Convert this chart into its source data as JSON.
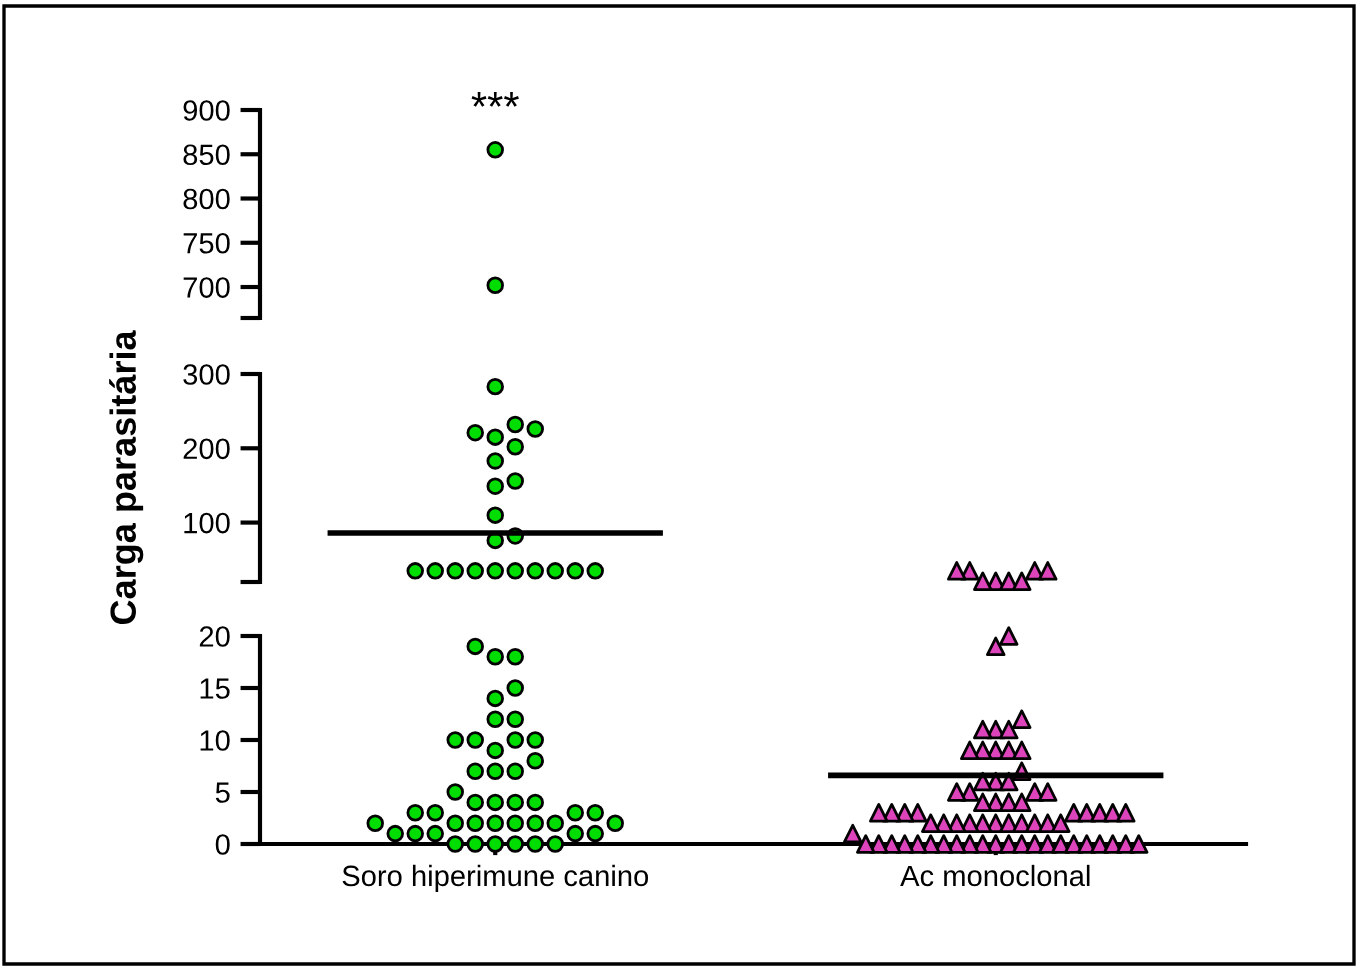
{
  "chart_data": [
    {
      "type": "scatter",
      "categories": [
        "Soro hiperimune canino",
        "Ac monoclonal"
      ],
      "tick_labels": "y",
      "ylim": [
        665,
        900
      ],
      "yticks": [
        {
          "value": 665,
          "label": null
        },
        700,
        750,
        800,
        850,
        900
      ],
      "grid": false,
      "annotations": [
        "***"
      ],
      "series": [
        {
          "color": "#00dd00",
          "marker": "circle",
          "x": [
            "Soro hiperimune canino",
            "Soro hiperimune canino"
          ],
          "values": [
            855,
            702
          ]
        }
      ]
    },
    {
      "type": "scatter",
      "categories": [
        "Soro hiperimune canino",
        "Ac monoclonal"
      ],
      "tick_labels": "y",
      "ylabel": "Carga parasitária",
      "ylim": [
        20,
        300
      ],
      "yticks": [
        {
          "value": 20,
          "label": null
        },
        100,
        200,
        300
      ],
      "grid": false,
      "ref_lines": [
        {
          "axis": "y",
          "value": 86,
          "color": "#000000"
        }
      ],
      "series": [
        {
          "color": "#00dd00",
          "marker": "circle",
          "x": [
            "Soro hiperimune canino",
            "Soro hiperimune canino",
            "Soro hiperimune canino",
            "Soro hiperimune canino",
            "Soro hiperimune canino",
            "Soro hiperimune canino",
            "Soro hiperimune canino",
            "Soro hiperimune canino",
            "Soro hiperimune canino",
            "Soro hiperimune canino",
            "Soro hiperimune canino",
            "Soro hiperimune canino",
            "Soro hiperimune canino",
            "Soro hiperimune canino",
            "Soro hiperimune canino",
            "Soro hiperimune canino",
            "Soro hiperimune canino",
            "Soro hiperimune canino",
            "Soro hiperimune canino",
            "Soro hiperimune canino",
            "Soro hiperimune canino",
            "Soro hiperimune canino"
          ],
          "values": [
            283,
            232,
            221,
            215,
            226,
            202,
            183,
            156,
            149,
            110,
            82,
            76,
            35,
            35,
            35,
            35,
            35,
            35,
            35,
            35,
            35,
            35
          ]
        },
        {
          "color": "#dd44bb",
          "marker": "triangle",
          "x": [
            "Ac monoclonal",
            "Ac monoclonal",
            "Ac monoclonal",
            "Ac monoclonal",
            "Ac monoclonal",
            "Ac monoclonal",
            "Ac monoclonal",
            "Ac monoclonal"
          ],
          "values": [
            35,
            35,
            35,
            35,
            21,
            21,
            21,
            21
          ]
        }
      ]
    },
    {
      "type": "scatter",
      "categories": [
        "Soro hiperimune canino",
        "Ac monoclonal"
      ],
      "ylim": [
        0,
        20
      ],
      "yticks": [
        0,
        5,
        10,
        15,
        20
      ],
      "grid": false,
      "ref_lines": [
        {
          "axis": "y",
          "value": 6.6,
          "color": "#000000"
        }
      ],
      "series": [
        {
          "color": "#00dd00",
          "marker": "circle",
          "x": [
            "Soro hiperimune canino",
            "Soro hiperimune canino",
            "Soro hiperimune canino",
            "Soro hiperimune canino",
            "Soro hiperimune canino",
            "Soro hiperimune canino",
            "Soro hiperimune canino",
            "Soro hiperimune canino",
            "Soro hiperimune canino",
            "Soro hiperimune canino",
            "Soro hiperimune canino",
            "Soro hiperimune canino",
            "Soro hiperimune canino",
            "Soro hiperimune canino",
            "Soro hiperimune canino",
            "Soro hiperimune canino",
            "Soro hiperimune canino",
            "Soro hiperimune canino",
            "Soro hiperimune canino",
            "Soro hiperimune canino",
            "Soro hiperimune canino",
            "Soro hiperimune canino",
            "Soro hiperimune canino",
            "Soro hiperimune canino",
            "Soro hiperimune canino",
            "Soro hiperimune canino",
            "Soro hiperimune canino",
            "Soro hiperimune canino",
            "Soro hiperimune canino",
            "Soro hiperimune canino",
            "Soro hiperimune canino",
            "Soro hiperimune canino",
            "Soro hiperimune canino",
            "Soro hiperimune canino",
            "Soro hiperimune canino",
            "Soro hiperimune canino",
            "Soro hiperimune canino",
            "Soro hiperimune canino",
            "Soro hiperimune canino",
            "Soro hiperimune canino",
            "Soro hiperimune canino",
            "Soro hiperimune canino",
            "Soro hiperimune canino",
            "Soro hiperimune canino"
          ],
          "values": [
            19,
            18,
            18,
            15,
            14,
            12,
            12,
            10,
            10,
            10,
            10,
            9,
            8,
            7,
            7,
            7,
            5,
            4,
            4,
            4,
            4,
            3,
            3,
            3,
            3,
            2,
            2,
            2,
            2,
            2,
            2,
            2,
            2,
            1,
            1,
            1,
            1,
            1,
            0,
            0,
            0,
            0,
            0,
            0
          ]
        },
        {
          "color": "#dd44bb",
          "marker": "triangle",
          "x": [
            "Ac monoclonal",
            "Ac monoclonal",
            "Ac monoclonal",
            "Ac monoclonal",
            "Ac monoclonal",
            "Ac monoclonal",
            "Ac monoclonal",
            "Ac monoclonal",
            "Ac monoclonal",
            "Ac monoclonal",
            "Ac monoclonal",
            "Ac monoclonal",
            "Ac monoclonal",
            "Ac monoclonal",
            "Ac monoclonal",
            "Ac monoclonal",
            "Ac monoclonal",
            "Ac monoclonal",
            "Ac monoclonal",
            "Ac monoclonal",
            "Ac monoclonal",
            "Ac monoclonal",
            "Ac monoclonal",
            "Ac monoclonal",
            "Ac monoclonal",
            "Ac monoclonal",
            "Ac monoclonal",
            "Ac monoclonal",
            "Ac monoclonal",
            "Ac monoclonal",
            "Ac monoclonal",
            "Ac monoclonal",
            "Ac monoclonal",
            "Ac monoclonal",
            "Ac monoclonal",
            "Ac monoclonal",
            "Ac monoclonal",
            "Ac monoclonal",
            "Ac monoclonal",
            "Ac monoclonal",
            "Ac monoclonal",
            "Ac monoclonal",
            "Ac monoclonal",
            "Ac monoclonal",
            "Ac monoclonal",
            "Ac monoclonal",
            "Ac monoclonal",
            "Ac monoclonal",
            "Ac monoclonal",
            "Ac monoclonal",
            "Ac monoclonal",
            "Ac monoclonal",
            "Ac monoclonal",
            "Ac monoclonal",
            "Ac monoclonal",
            "Ac monoclonal",
            "Ac monoclonal",
            "Ac monoclonal",
            "Ac monoclonal",
            "Ac monoclonal",
            "Ac monoclonal",
            "Ac monoclonal",
            "Ac monoclonal",
            "Ac monoclonal",
            "Ac monoclonal",
            "Ac monoclonal"
          ],
          "values": [
            20,
            19,
            12,
            11,
            11,
            11,
            9,
            9,
            9,
            9,
            9,
            7,
            6,
            6,
            6,
            5,
            5,
            5,
            5,
            4,
            4,
            4,
            4,
            3,
            3,
            3,
            3,
            3,
            3,
            3,
            3,
            3,
            2,
            2,
            2,
            2,
            2,
            2,
            2,
            2,
            2,
            2,
            2,
            1,
            0,
            0,
            0,
            0,
            0,
            0,
            0,
            0,
            0,
            0,
            0,
            0,
            0,
            0,
            0,
            0,
            0,
            0,
            0,
            0,
            0,
            0
          ]
        }
      ]
    }
  ]
}
